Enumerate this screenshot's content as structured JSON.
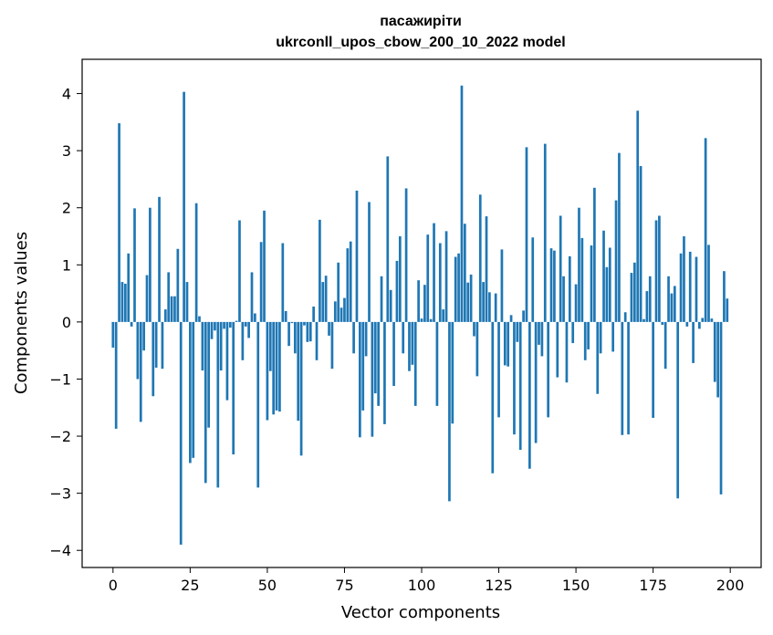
{
  "chart_data": {
    "type": "bar",
    "title": "пасажирiти",
    "subtitle": "ukrconll_upos_cbow_200_10_2022 model",
    "xlabel": "Vector components",
    "ylabel": "Components values",
    "xlim": [
      -10,
      210
    ],
    "ylim": [
      -4.3,
      4.6
    ],
    "xticks": [
      0,
      25,
      50,
      75,
      100,
      125,
      150,
      175,
      200
    ],
    "yticks": [
      -4,
      -3,
      -2,
      -1,
      0,
      1,
      2,
      3,
      4
    ],
    "xtick_labels": [
      "0",
      "25",
      "50",
      "75",
      "100",
      "125",
      "150",
      "175",
      "200"
    ],
    "ytick_labels": [
      "−4",
      "−3",
      "−2",
      "−1",
      "0",
      "1",
      "2",
      "3",
      "4"
    ],
    "bar_color": "#1f77b4",
    "x": [
      0,
      1,
      2,
      3,
      4,
      5,
      6,
      7,
      8,
      9,
      10,
      11,
      12,
      13,
      14,
      15,
      16,
      17,
      18,
      19,
      20,
      21,
      22,
      23,
      24,
      25,
      26,
      27,
      28,
      29,
      30,
      31,
      32,
      33,
      34,
      35,
      36,
      37,
      38,
      39,
      40,
      41,
      42,
      43,
      44,
      45,
      46,
      47,
      48,
      49,
      50,
      51,
      52,
      53,
      54,
      55,
      56,
      57,
      58,
      59,
      60,
      61,
      62,
      63,
      64,
      65,
      66,
      67,
      68,
      69,
      70,
      71,
      72,
      73,
      74,
      75,
      76,
      77,
      78,
      79,
      80,
      81,
      82,
      83,
      84,
      85,
      86,
      87,
      88,
      89,
      90,
      91,
      92,
      93,
      94,
      95,
      96,
      97,
      98,
      99,
      100,
      101,
      102,
      103,
      104,
      105,
      106,
      107,
      108,
      109,
      110,
      111,
      112,
      113,
      114,
      115,
      116,
      117,
      118,
      119,
      120,
      121,
      122,
      123,
      124,
      125,
      126,
      127,
      128,
      129,
      130,
      131,
      132,
      133,
      134,
      135,
      136,
      137,
      138,
      139,
      140,
      141,
      142,
      143,
      144,
      145,
      146,
      147,
      148,
      149,
      150,
      151,
      152,
      153,
      154,
      155,
      156,
      157,
      158,
      159,
      160,
      161,
      162,
      163,
      164,
      165,
      166,
      167,
      168,
      169,
      170,
      171,
      172,
      173,
      174,
      175,
      176,
      177,
      178,
      179,
      180,
      181,
      182,
      183,
      184,
      185,
      186,
      187,
      188,
      189,
      190,
      191,
      192,
      193,
      194,
      195,
      196,
      197,
      198,
      199
    ],
    "values": [
      -0.45,
      -1.87,
      3.48,
      0.7,
      0.67,
      1.2,
      -0.08,
      1.99,
      -1.0,
      -1.75,
      -0.5,
      0.82,
      2.0,
      -1.3,
      -0.8,
      2.19,
      -0.82,
      0.22,
      0.87,
      0.45,
      0.45,
      1.28,
      -3.9,
      4.03,
      0.7,
      -2.47,
      -2.38,
      2.08,
      0.1,
      -0.85,
      -2.82,
      -1.85,
      -0.3,
      -0.15,
      -2.9,
      -0.85,
      -0.12,
      -1.37,
      -0.1,
      -2.32,
      0.02,
      1.78,
      -0.67,
      -0.08,
      -0.28,
      0.87,
      0.15,
      -2.9,
      1.4,
      1.95,
      -1.72,
      -0.86,
      -1.62,
      -1.55,
      -1.57,
      1.38,
      0.19,
      -0.42,
      -0.02,
      -0.55,
      -1.73,
      -2.34,
      -0.06,
      -0.35,
      -0.34,
      0.27,
      -0.67,
      1.79,
      0.7,
      0.81,
      -0.24,
      -0.82,
      0.36,
      1.04,
      0.25,
      0.42,
      1.29,
      1.41,
      -0.55,
      2.3,
      -2.02,
      -1.55,
      -0.6,
      2.1,
      -2.01,
      -1.25,
      -1.47,
      0.8,
      -1.79,
      2.9,
      0.56,
      -1.12,
      1.07,
      1.5,
      -0.55,
      2.34,
      -0.86,
      -0.75,
      -1.47,
      0.73,
      0.06,
      0.65,
      1.53,
      0.05,
      1.73,
      -1.47,
      1.38,
      0.22,
      1.59,
      -3.14,
      -1.78,
      1.14,
      1.2,
      4.14,
      1.72,
      0.69,
      0.83,
      -0.25,
      -0.95,
      2.23,
      0.7,
      1.85,
      0.52,
      -2.65,
      0.5,
      -1.67,
      1.27,
      -0.76,
      -0.78,
      0.12,
      -1.97,
      -0.35,
      -2.24,
      0.2,
      3.06,
      -2.57,
      1.48,
      -2.12,
      -0.4,
      -0.6,
      3.12,
      -1.67,
      1.29,
      1.25,
      -0.97,
      1.86,
      0.8,
      -1.06,
      1.15,
      -0.37,
      0.66,
      2.0,
      1.47,
      -0.67,
      -0.48,
      1.34,
      2.35,
      -1.26,
      -0.55,
      1.6,
      0.96,
      1.3,
      -0.52,
      2.13,
      2.96,
      -1.98,
      0.17,
      -1.97,
      0.86,
      1.04,
      3.7,
      2.73,
      0.05,
      0.54,
      0.8,
      -1.68,
      1.78,
      1.86,
      -0.05,
      -0.82,
      0.8,
      0.5,
      0.63,
      -3.09,
      1.2,
      1.5,
      -0.08,
      1.23,
      -0.72,
      1.14,
      -0.12,
      0.07,
      3.22,
      1.35,
      0.06,
      -1.05,
      -1.32,
      -3.02,
      0.89,
      0.41
    ]
  }
}
